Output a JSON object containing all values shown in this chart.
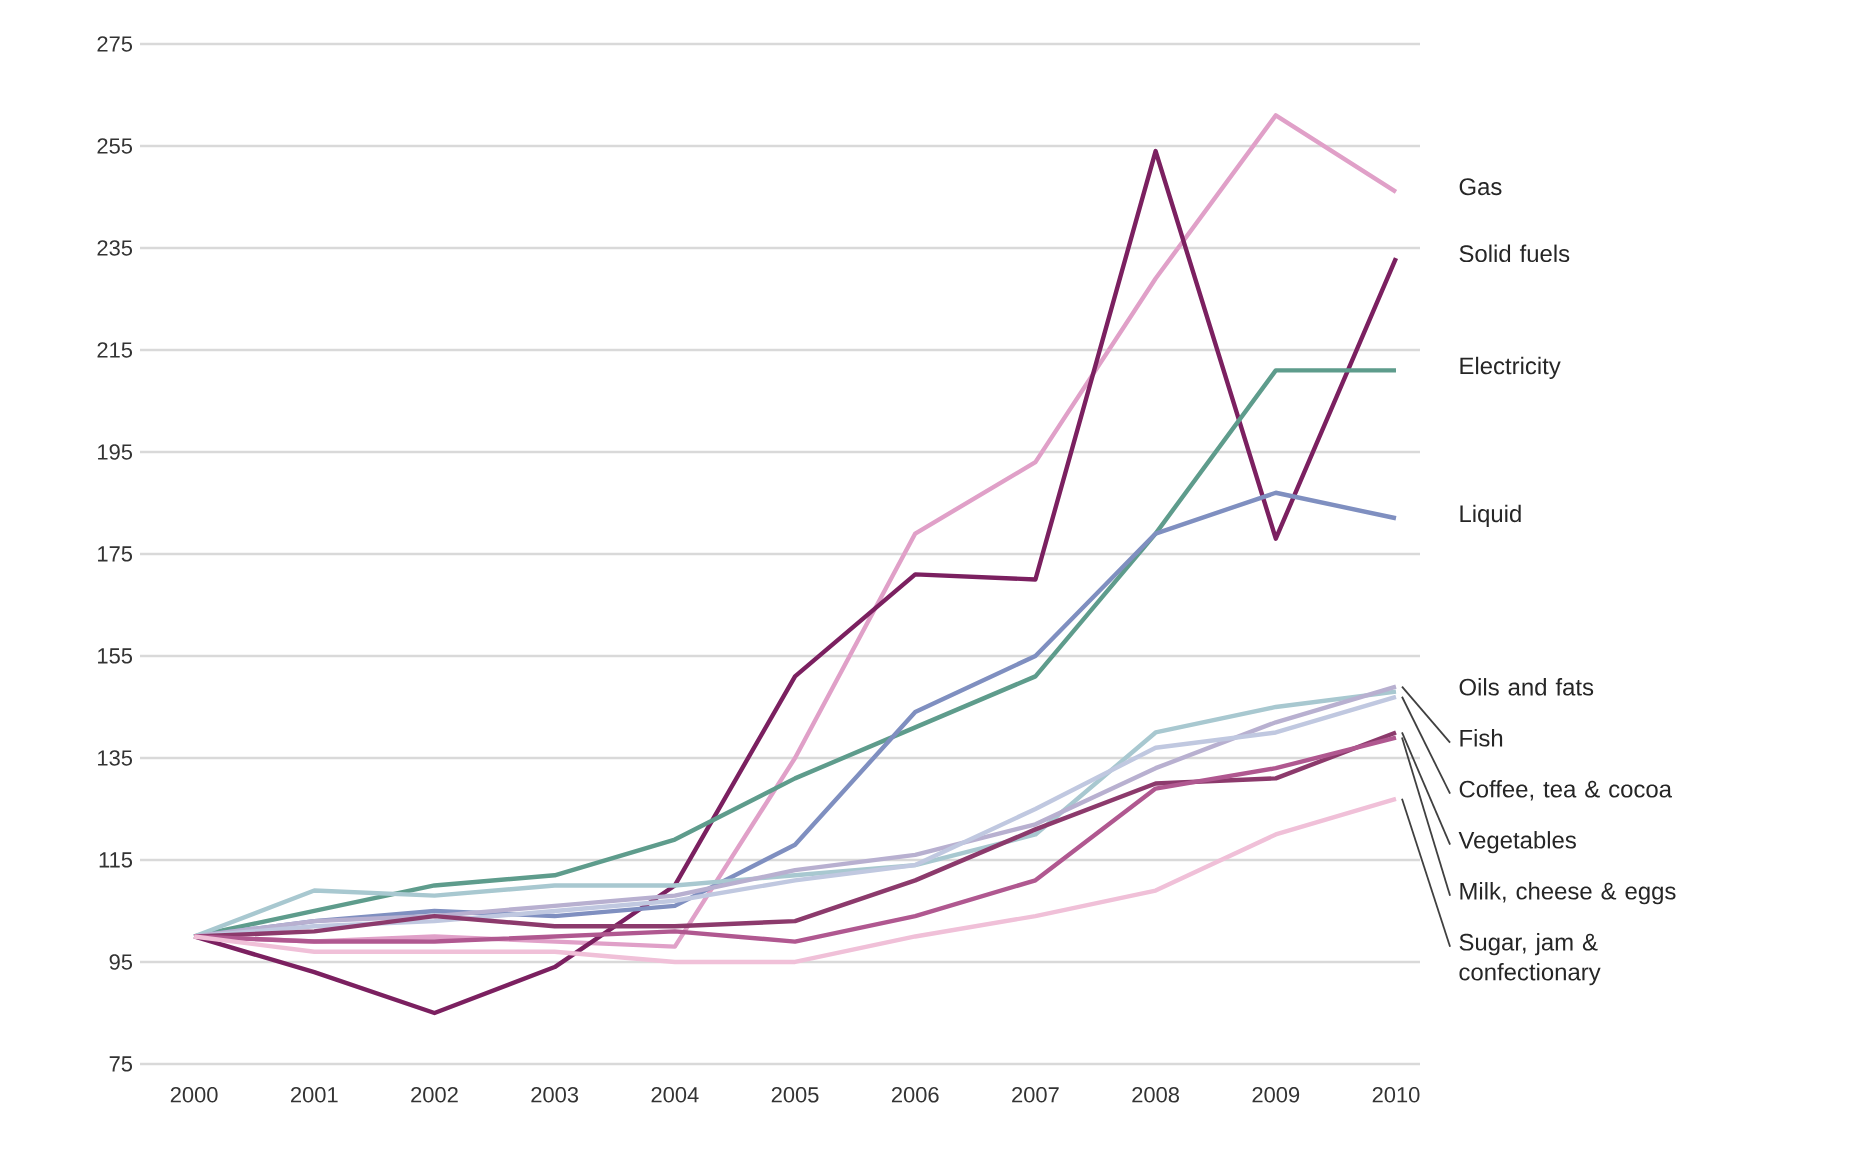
{
  "chart_data": {
    "type": "line",
    "categories": [
      "2000",
      "2001",
      "2002",
      "2003",
      "2004",
      "2005",
      "2006",
      "2007",
      "2008",
      "2009",
      "2010"
    ],
    "series": [
      {
        "name": "Gas",
        "color": "#e0a0c8",
        "values": [
          100,
          99,
          100,
          99,
          98,
          135,
          179,
          193,
          229,
          261,
          246
        ]
      },
      {
        "name": "Solid fuels",
        "color": "#7b2060",
        "values": [
          100,
          93,
          85,
          94,
          110,
          151,
          171,
          170,
          254,
          178,
          233
        ]
      },
      {
        "name": "Electricity",
        "color": "#5e9c8c",
        "values": [
          100,
          105,
          110,
          112,
          119,
          131,
          141,
          151,
          179,
          211,
          211
        ]
      },
      {
        "name": "Liquid",
        "color": "#7f8fc0",
        "values": [
          100,
          103,
          105,
          104,
          106,
          118,
          144,
          155,
          179,
          187,
          182
        ]
      },
      {
        "name": "Oils and fats",
        "color": "#a8c8d0",
        "values": [
          100,
          109,
          108,
          110,
          110,
          112,
          114,
          120,
          140,
          145,
          148
        ]
      },
      {
        "name": "Fish",
        "color": "#b8b0d0",
        "values": [
          100,
          103,
          104,
          106,
          108,
          113,
          116,
          122,
          133,
          142,
          149
        ]
      },
      {
        "name": "Coffee, tea & cocoa",
        "color": "#c0c8e0",
        "values": [
          100,
          102,
          103,
          105,
          107,
          111,
          114,
          125,
          137,
          140,
          147
        ]
      },
      {
        "name": "Vegetables",
        "color": "#8c3a6c",
        "values": [
          100,
          101,
          104,
          102,
          102,
          103,
          111,
          121,
          130,
          131,
          140
        ]
      },
      {
        "name": "Milk, cheese & eggs",
        "color": "#b05890",
        "values": [
          100,
          99,
          99,
          100,
          101,
          99,
          104,
          111,
          129,
          133,
          139
        ]
      },
      {
        "name": "Sugar, jam & confectionary",
        "color": "#f0c0d8",
        "values": [
          100,
          97,
          97,
          97,
          95,
          95,
          100,
          104,
          109,
          120,
          127
        ]
      }
    ],
    "ylim": [
      75,
      275
    ],
    "yticks": [
      75,
      95,
      115,
      135,
      155,
      175,
      195,
      215,
      235,
      255,
      275
    ],
    "grid": "y",
    "line_style": "solid"
  }
}
